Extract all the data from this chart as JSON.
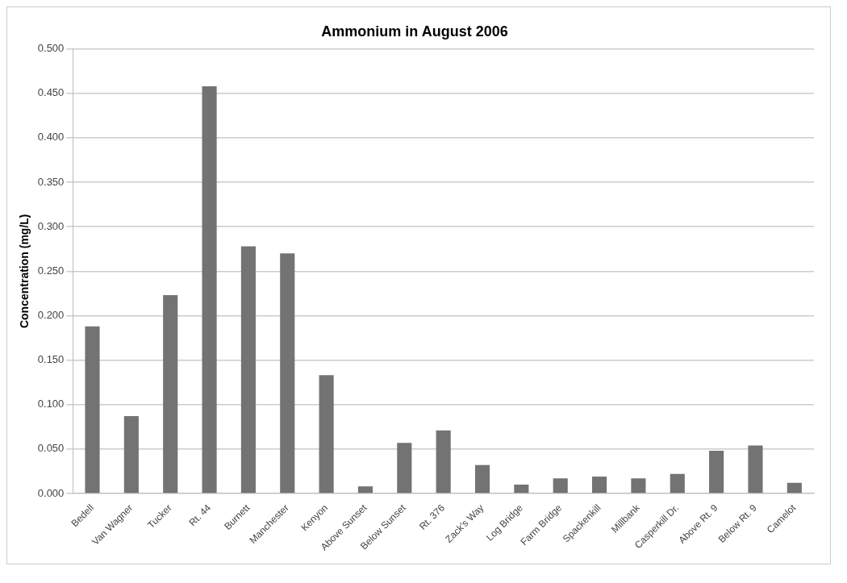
{
  "chart_data": {
    "type": "bar",
    "title": "Ammonium in August 2006",
    "ylabel": "Concentration (mg/L)",
    "categories": [
      "Bedell",
      "Van Wagner",
      "Tucker",
      "Rt. 44",
      "Burnett",
      "Manchester",
      "Kenyon",
      "Above Sunset",
      "Below Sunset",
      "Rt. 376",
      "Zack's Way",
      "Log Bridge",
      "Farm Bridge",
      "Spackenkill",
      "Millbank",
      "Casperkill Dr.",
      "Above Rt. 9",
      "Below Rt. 9",
      "Camelot"
    ],
    "values": [
      0.188,
      0.087,
      0.223,
      0.458,
      0.278,
      0.27,
      0.133,
      0.008,
      0.057,
      0.071,
      0.032,
      0.01,
      0.017,
      0.019,
      0.017,
      0.022,
      0.048,
      0.054,
      0.012
    ],
    "color": "#737373",
    "ylim": [
      0,
      0.5
    ],
    "yticks": [
      {
        "value": 0,
        "label": "0.000"
      },
      {
        "value": 0.05,
        "label": "0.050"
      },
      {
        "value": 0.1,
        "label": "0.100"
      },
      {
        "value": 0.15,
        "label": "0.150"
      },
      {
        "value": 0.2,
        "label": "0.200"
      },
      {
        "value": 0.25,
        "label": "0.250"
      },
      {
        "value": 0.3,
        "label": "0.300"
      },
      {
        "value": 0.35,
        "label": "0.350"
      },
      {
        "value": 0.4,
        "label": "0.400"
      },
      {
        "value": 0.45,
        "label": "0.450"
      },
      {
        "value": 0.5,
        "label": "0.500"
      }
    ],
    "grid": "y"
  }
}
